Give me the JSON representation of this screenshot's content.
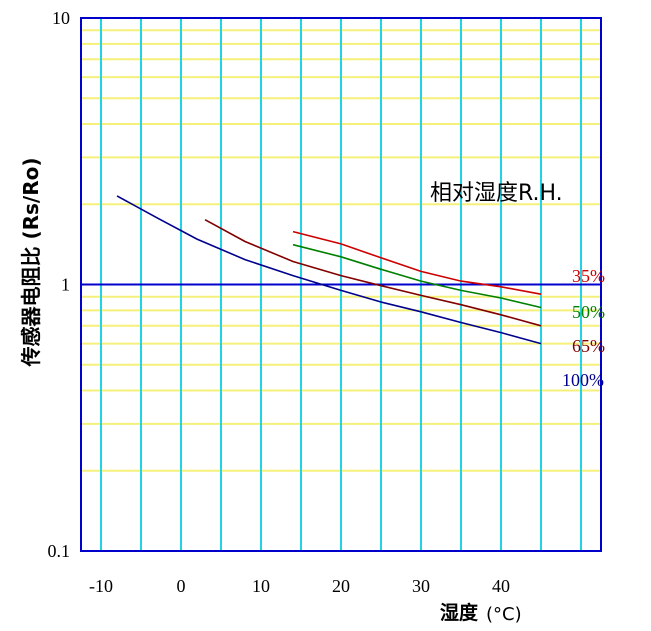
{
  "chart_data": {
    "type": "line",
    "title": "",
    "xlabel": "湿度",
    "xlabel_unit": "(°C)",
    "ylabel": "传感器电阻比 (Rs/Ro)",
    "legend_title": "相对湿度R.H.",
    "y_scale": "log",
    "xlim": [
      -12.5,
      52.5
    ],
    "ylim": [
      0.1,
      10
    ],
    "x_ticks": [
      "-10",
      "0",
      "10",
      "20",
      "30",
      "40"
    ],
    "y_ticks": [
      "0.1",
      "1",
      "10"
    ],
    "grid": true,
    "colors": {
      "frame": "#0000cc",
      "reference_line": "#0000cc",
      "vertical_grid": "#22d3e6",
      "horizontal_grid": "#f5f07a",
      "background": "#ffffff"
    },
    "reference_y": 1,
    "series": [
      {
        "name": "35%",
        "color": "#cc0000",
        "x": [
          14,
          20,
          25,
          30,
          35,
          40,
          45
        ],
        "y": [
          1.58,
          1.42,
          1.26,
          1.12,
          1.03,
          0.98,
          0.92
        ]
      },
      {
        "name": "50%",
        "color": "#008000",
        "x": [
          14,
          20,
          25,
          30,
          35,
          40,
          45
        ],
        "y": [
          1.41,
          1.27,
          1.14,
          1.03,
          0.95,
          0.89,
          0.82
        ]
      },
      {
        "name": "65%",
        "color": "#800000",
        "x": [
          3,
          8,
          14,
          20,
          25,
          30,
          35,
          40,
          45
        ],
        "y": [
          1.75,
          1.45,
          1.22,
          1.08,
          0.99,
          0.91,
          0.84,
          0.77,
          0.7
        ]
      },
      {
        "name": "100%",
        "color": "#00008b",
        "x": [
          -8,
          -3,
          2,
          8,
          14,
          20,
          25,
          30,
          35,
          40,
          45
        ],
        "y": [
          2.15,
          1.78,
          1.48,
          1.24,
          1.08,
          0.95,
          0.86,
          0.79,
          0.72,
          0.66,
          0.6
        ]
      }
    ]
  }
}
